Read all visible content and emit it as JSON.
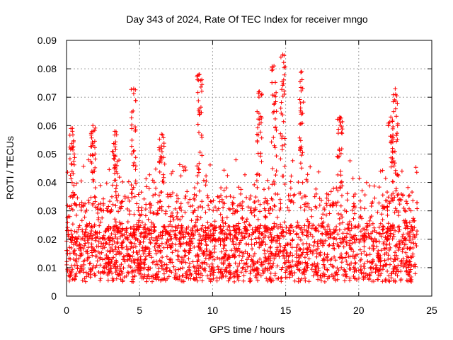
{
  "chart_data": {
    "type": "scatter",
    "title": "Day 343 of 2024, Rate Of TEC Index for receiver mngo",
    "xlabel": "GPS time / hours",
    "ylabel": "ROTI / TECUs",
    "xlim": [
      0,
      25
    ],
    "ylim": [
      0,
      0.09
    ],
    "xticks": [
      0,
      5,
      10,
      15,
      20,
      25
    ],
    "xtick_labels": [
      "0",
      "5",
      "10",
      "15",
      "20",
      "25"
    ],
    "yticks": [
      0,
      0.01,
      0.02,
      0.03,
      0.04,
      0.05,
      0.06,
      0.07,
      0.08,
      0.09
    ],
    "ytick_labels": [
      "0",
      "0.01",
      "0.02",
      "0.03",
      "0.04",
      "0.05",
      "0.06",
      "0.07",
      "0.08",
      "0.09"
    ],
    "grid": true,
    "marker": "+",
    "series_color": "#ff0000",
    "data_x_range": [
      0,
      24
    ],
    "baseline_band": [
      0.005,
      0.025
    ],
    "spikes": [
      {
        "x": 0.4,
        "y": 0.059
      },
      {
        "x": 1.8,
        "y": 0.06
      },
      {
        "x": 3.3,
        "y": 0.058
      },
      {
        "x": 4.6,
        "y": 0.073
      },
      {
        "x": 6.5,
        "y": 0.057
      },
      {
        "x": 9.1,
        "y": 0.078
      },
      {
        "x": 13.2,
        "y": 0.072
      },
      {
        "x": 14.2,
        "y": 0.081
      },
      {
        "x": 14.8,
        "y": 0.085
      },
      {
        "x": 16.1,
        "y": 0.079
      },
      {
        "x": 18.7,
        "y": 0.063
      },
      {
        "x": 22.5,
        "y": 0.073
      },
      {
        "x": 22.2,
        "y": 0.063
      }
    ]
  }
}
